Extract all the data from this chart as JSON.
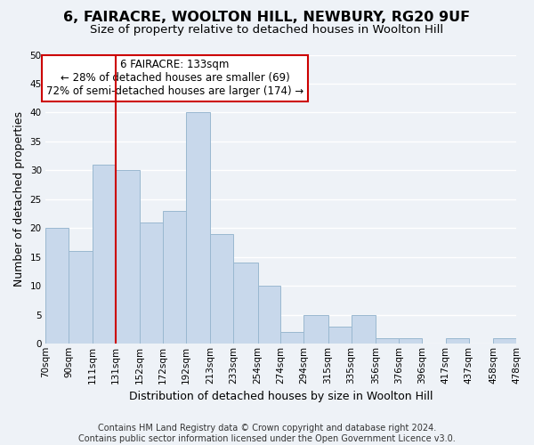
{
  "title": "6, FAIRACRE, WOOLTON HILL, NEWBURY, RG20 9UF",
  "subtitle": "Size of property relative to detached houses in Woolton Hill",
  "xlabel": "Distribution of detached houses by size in Woolton Hill",
  "ylabel": "Number of detached properties",
  "bin_edges": [
    70,
    90,
    111,
    131,
    152,
    172,
    192,
    213,
    233,
    254,
    274,
    294,
    315,
    335,
    356,
    376,
    396,
    417,
    437,
    458,
    478
  ],
  "bin_labels": [
    "70sqm",
    "90sqm",
    "111sqm",
    "131sqm",
    "152sqm",
    "172sqm",
    "192sqm",
    "213sqm",
    "233sqm",
    "254sqm",
    "274sqm",
    "294sqm",
    "315sqm",
    "335sqm",
    "356sqm",
    "376sqm",
    "396sqm",
    "417sqm",
    "437sqm",
    "458sqm",
    "478sqm"
  ],
  "counts": [
    20,
    16,
    31,
    30,
    21,
    23,
    40,
    19,
    14,
    10,
    2,
    5,
    3,
    5,
    1,
    1,
    0,
    1,
    0,
    1
  ],
  "bar_color": "#c8d8eb",
  "bar_edge_color": "#9ab8d0",
  "vertical_line_x": 131,
  "vertical_line_color": "#cc0000",
  "ann_line1": "6 FAIRACRE: 133sqm",
  "ann_line2": "← 28% of detached houses are smaller (69)",
  "ann_line3": "72% of semi-detached houses are larger (174) →",
  "annotation_box_color": "#cc0000",
  "ylim": [
    0,
    50
  ],
  "yticks": [
    0,
    5,
    10,
    15,
    20,
    25,
    30,
    35,
    40,
    45,
    50
  ],
  "footnote": "Contains HM Land Registry data © Crown copyright and database right 2024.\nContains public sector information licensed under the Open Government Licence v3.0.",
  "background_color": "#eef2f7",
  "grid_color": "#ffffff",
  "title_fontsize": 11.5,
  "subtitle_fontsize": 9.5,
  "axis_label_fontsize": 9,
  "tick_fontsize": 7.5,
  "annotation_fontsize": 8.5,
  "footnote_fontsize": 7
}
